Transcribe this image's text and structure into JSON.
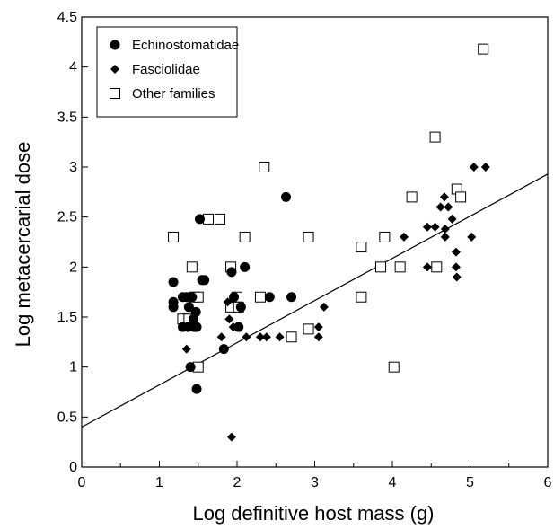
{
  "chart_data": {
    "type": "scatter",
    "xlabel": "Log definitive host mass (g)",
    "ylabel": "Log metacercarial dose",
    "xlim": [
      0,
      6
    ],
    "ylim": [
      0,
      4.5
    ],
    "x_ticks": [
      "0",
      "1",
      "2",
      "3",
      "4",
      "5",
      "6"
    ],
    "y_ticks": [
      "0",
      "0.5",
      "1",
      "1.5",
      "2",
      "2.5",
      "3",
      "3.5",
      "4",
      "4.5"
    ],
    "grid": false,
    "legend_position": "top-left",
    "series": [
      {
        "name": "Echinostomatidae",
        "marker": "filled-circle",
        "color": "#000000",
        "points": [
          [
            1.18,
            1.85
          ],
          [
            1.18,
            1.65
          ],
          [
            1.18,
            1.6
          ],
          [
            1.3,
            1.7
          ],
          [
            1.3,
            1.4
          ],
          [
            1.35,
            1.7
          ],
          [
            1.37,
            1.4
          ],
          [
            1.38,
            1.6
          ],
          [
            1.4,
            1.0
          ],
          [
            1.42,
            1.7
          ],
          [
            1.44,
            1.48
          ],
          [
            1.45,
            1.4
          ],
          [
            1.47,
            1.55
          ],
          [
            1.48,
            1.4
          ],
          [
            1.48,
            0.78
          ],
          [
            1.52,
            2.48
          ],
          [
            1.55,
            1.87
          ],
          [
            1.58,
            1.87
          ],
          [
            1.83,
            1.18
          ],
          [
            1.93,
            1.95
          ],
          [
            1.96,
            1.7
          ],
          [
            2.02,
            1.4
          ],
          [
            2.05,
            1.6
          ],
          [
            2.1,
            2.0
          ],
          [
            2.42,
            1.7
          ],
          [
            2.63,
            2.7
          ],
          [
            2.7,
            1.7
          ]
        ]
      },
      {
        "name": "Fasciolidae",
        "marker": "filled-diamond",
        "color": "#000000",
        "points": [
          [
            1.35,
            1.18
          ],
          [
            1.8,
            1.3
          ],
          [
            1.88,
            1.65
          ],
          [
            1.9,
            1.48
          ],
          [
            1.93,
            0.3
          ],
          [
            1.95,
            1.4
          ],
          [
            2.02,
            1.4
          ],
          [
            2.12,
            1.3
          ],
          [
            2.3,
            1.3
          ],
          [
            2.38,
            1.3
          ],
          [
            2.55,
            1.3
          ],
          [
            3.05,
            1.3
          ],
          [
            3.05,
            1.4
          ],
          [
            3.12,
            1.6
          ],
          [
            4.15,
            2.3
          ],
          [
            4.45,
            2.4
          ],
          [
            4.45,
            2.0
          ],
          [
            4.55,
            2.4
          ],
          [
            4.62,
            2.6
          ],
          [
            4.67,
            2.7
          ],
          [
            4.68,
            2.38
          ],
          [
            4.68,
            2.3
          ],
          [
            4.72,
            2.6
          ],
          [
            4.77,
            2.48
          ],
          [
            4.82,
            2.15
          ],
          [
            4.82,
            2.0
          ],
          [
            4.83,
            1.9
          ],
          [
            5.02,
            2.3
          ],
          [
            5.05,
            3.0
          ],
          [
            5.2,
            3.0
          ]
        ]
      },
      {
        "name": "Other families",
        "marker": "open-square",
        "color": "#000000",
        "points": [
          [
            1.18,
            2.3
          ],
          [
            1.3,
            1.48
          ],
          [
            1.38,
            1.48
          ],
          [
            1.42,
            2.0
          ],
          [
            1.45,
            1.7
          ],
          [
            1.5,
            1.7
          ],
          [
            1.5,
            1.0
          ],
          [
            1.63,
            2.48
          ],
          [
            1.78,
            2.48
          ],
          [
            1.92,
            2.0
          ],
          [
            1.92,
            1.6
          ],
          [
            2.0,
            1.7
          ],
          [
            2.02,
            1.6
          ],
          [
            2.1,
            2.3
          ],
          [
            2.3,
            1.7
          ],
          [
            2.35,
            3.0
          ],
          [
            2.7,
            1.3
          ],
          [
            2.92,
            2.3
          ],
          [
            2.92,
            1.38
          ],
          [
            3.6,
            2.2
          ],
          [
            3.6,
            1.7
          ],
          [
            3.85,
            2.0
          ],
          [
            3.9,
            2.3
          ],
          [
            4.02,
            1.0
          ],
          [
            4.1,
            2.0
          ],
          [
            4.25,
            2.7
          ],
          [
            4.55,
            3.3
          ],
          [
            4.57,
            2.0
          ],
          [
            4.83,
            2.78
          ],
          [
            4.88,
            2.7
          ],
          [
            5.17,
            4.18
          ]
        ]
      }
    ],
    "regression_line": {
      "x": [
        0,
        6
      ],
      "y": [
        0.4,
        2.93
      ]
    }
  }
}
